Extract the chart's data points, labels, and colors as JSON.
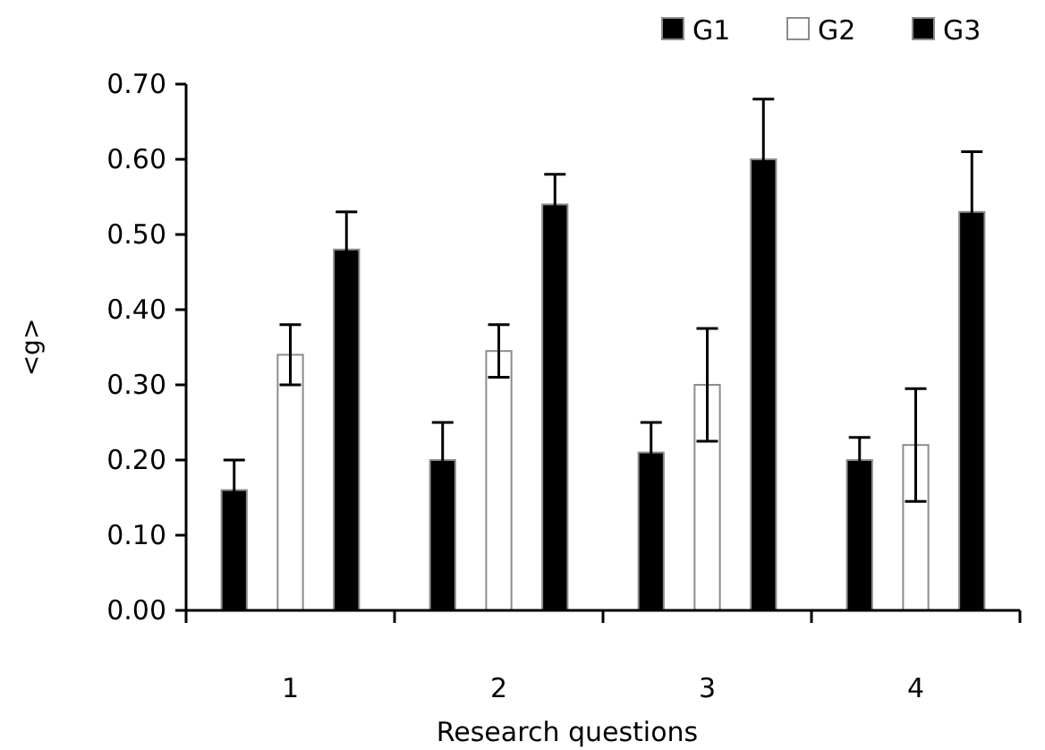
{
  "chart_data": {
    "type": "bar",
    "xlabel": "Research questions",
    "ylabel": "<g>",
    "categories": [
      "1",
      "2",
      "3",
      "4"
    ],
    "series": [
      {
        "name": "G1",
        "color": "#000000",
        "values": [
          0.16,
          0.2,
          0.21,
          0.2
        ],
        "errors": [
          0.04,
          0.05,
          0.04,
          0.03
        ]
      },
      {
        "name": "G2",
        "color": "#ffffff",
        "values": [
          0.34,
          0.345,
          0.3,
          0.22
        ],
        "errors": [
          0.04,
          0.035,
          0.075,
          0.075
        ]
      },
      {
        "name": "G3",
        "color": "#000000",
        "values": [
          0.48,
          0.54,
          0.6,
          0.53
        ],
        "errors": [
          0.05,
          0.04,
          0.08,
          0.08
        ]
      }
    ],
    "ylim": [
      0,
      0.7
    ],
    "yticks": [
      {
        "value": 0,
        "label": "0.00"
      },
      {
        "value": 0.1,
        "label": "0.10"
      },
      {
        "value": 0.2,
        "label": "0.20"
      },
      {
        "value": 0.3,
        "label": "0.30"
      },
      {
        "value": 0.4,
        "label": "0.40"
      },
      {
        "value": 0.5,
        "label": "0.50"
      },
      {
        "value": 0.6,
        "label": "0.60"
      },
      {
        "value": 0.7,
        "label": "0.70"
      }
    ],
    "grid": false,
    "legend": "top right"
  }
}
